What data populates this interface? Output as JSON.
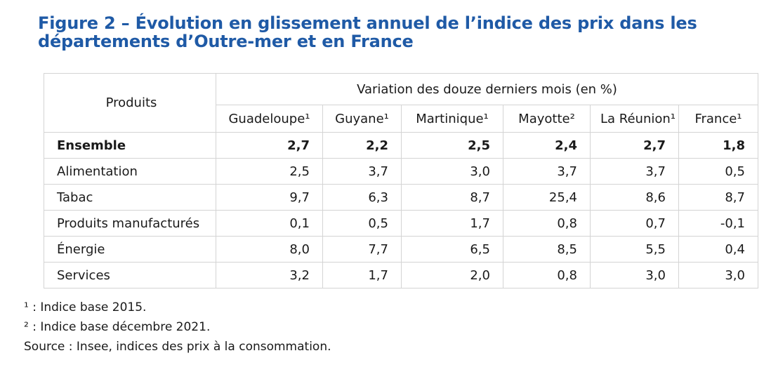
{
  "title": "Figure 2 – Évolution en glissement annuel de l’indice des prix dans les départements d’Outre-mer et en France",
  "table": {
    "products_header": "Produits",
    "group_header": "Variation des douze derniers mois (en %)",
    "columns": [
      "Guadeloupe¹",
      "Guyane¹",
      "Martinique¹",
      "Mayotte²",
      "La Réunion¹",
      "France¹"
    ],
    "rows": [
      {
        "label": "Ensemble",
        "values": [
          "2,7",
          "2,2",
          "2,5",
          "2,4",
          "2,7",
          "1,8"
        ]
      },
      {
        "label": "Alimentation",
        "values": [
          "2,5",
          "3,7",
          "3,0",
          "3,7",
          "3,7",
          "0,5"
        ]
      },
      {
        "label": "Tabac",
        "values": [
          "9,7",
          "6,3",
          "8,7",
          "25,4",
          "8,6",
          "8,7"
        ]
      },
      {
        "label": "Produits manufacturés",
        "values": [
          "0,1",
          "0,5",
          "1,7",
          "0,8",
          "0,7",
          "-0,1"
        ]
      },
      {
        "label": "Énergie",
        "values": [
          "8,0",
          "7,7",
          "6,5",
          "8,5",
          "5,5",
          "0,4"
        ]
      },
      {
        "label": "Services",
        "values": [
          "3,2",
          "1,7",
          "2,0",
          "0,8",
          "3,0",
          "3,0"
        ]
      }
    ]
  },
  "notes": [
    "¹ : Indice base 2015.",
    "² : Indice base décembre 2021.",
    "Source : Insee, indices des prix à la consommation."
  ],
  "colors": {
    "title": "#1f5aa6",
    "border": "#d4d4d4",
    "text": "#1a1a1a"
  }
}
